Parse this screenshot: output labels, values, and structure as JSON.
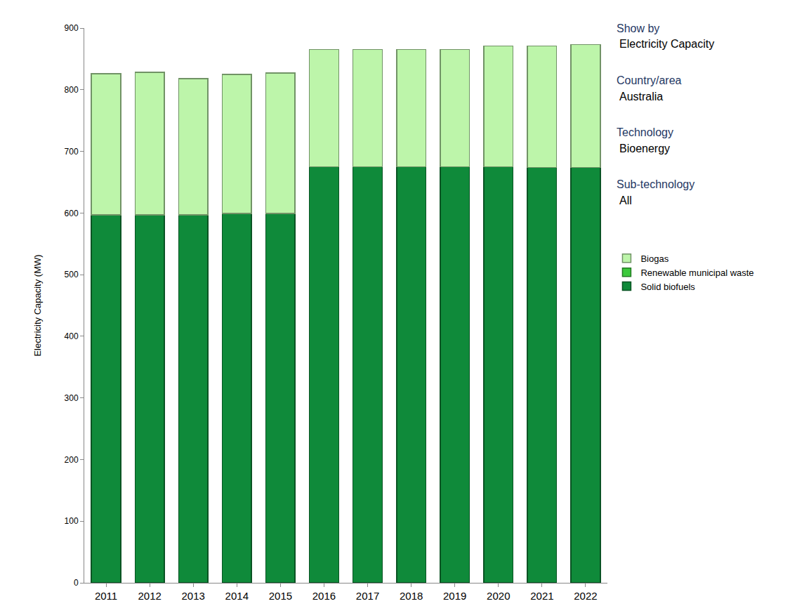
{
  "chart_data": {
    "type": "bar",
    "stacked": true,
    "y_label": "Electricity Capacity (MW)",
    "categories": [
      "2011",
      "2012",
      "2013",
      "2014",
      "2015",
      "2016",
      "2017",
      "2018",
      "2019",
      "2020",
      "2021",
      "2022"
    ],
    "series": [
      {
        "name": "Solid biofuels",
        "color": "#0f8a3a",
        "values": [
          597,
          597,
          597,
          599,
          599,
          675,
          675,
          675,
          675,
          675,
          674,
          674
        ]
      },
      {
        "name": "Renewable municipal waste",
        "color": "#3cc93c",
        "values": [
          0,
          0,
          0,
          0,
          0,
          0,
          0,
          0,
          0,
          0,
          0,
          0
        ]
      },
      {
        "name": "Biogas",
        "color": "#bdf5aa",
        "values": [
          229,
          231,
          221,
          226,
          228,
          190,
          190,
          190,
          190,
          196,
          197,
          199
        ]
      }
    ],
    "ylim": [
      0,
      900
    ],
    "yticks": [
      0,
      100,
      200,
      300,
      400,
      500,
      600,
      700,
      800,
      900
    ],
    "grid": false,
    "legend": "right",
    "annotations": [
      {
        "heading": "Show by",
        "text": "Electricity Capacity"
      },
      {
        "heading": "Country/area",
        "text": "Australia"
      },
      {
        "heading": "Technology",
        "text": "Bioenergy"
      },
      {
        "heading": "Sub-technology",
        "text": "All"
      }
    ]
  }
}
